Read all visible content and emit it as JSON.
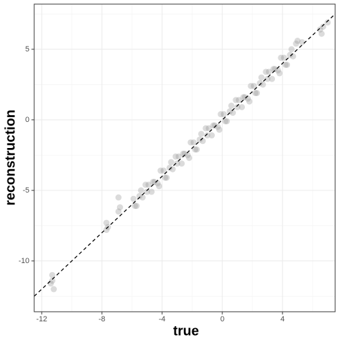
{
  "chart_data": {
    "type": "scatter",
    "x_label": "true",
    "y_label": "reconstruction",
    "x": [
      -5.9,
      -5.7,
      -5.5,
      -5.3,
      -5.1,
      -4.9,
      -4.7,
      -4.5,
      -4.3,
      -4.1,
      -3.9,
      -3.7,
      -3.5,
      -3.3,
      -3.1,
      -2.9,
      -2.7,
      -2.5,
      -2.3,
      -2.1,
      -1.9,
      -1.7,
      -1.5,
      -1.3,
      -1.1,
      -0.9,
      -0.7,
      -0.5,
      -0.3,
      -0.1,
      0.1,
      0.3,
      0.5,
      0.7,
      0.9,
      1.1,
      1.3,
      1.5,
      1.7,
      1.9,
      2.1,
      2.3,
      2.5,
      2.7,
      2.9,
      3.1,
      3.3,
      3.5,
      3.7,
      3.9,
      4.1,
      4.3,
      4.5,
      4.7,
      4.9,
      -5.8,
      -5.4,
      -5.0,
      -4.6,
      -4.2,
      -3.8,
      -3.4,
      -3.0,
      -2.6,
      -2.2,
      -1.8,
      -1.4,
      -1.0,
      -0.6,
      -0.2,
      0.2,
      0.6,
      1.0,
      1.4,
      1.8,
      2.2,
      2.6,
      3.0,
      3.4,
      3.8,
      4.2,
      4.6,
      -11.3,
      -11.4,
      -11.2,
      -11.3,
      -7.7,
      -7.7,
      -7.6,
      -6.9,
      -6.8,
      -6.9,
      5.0,
      5.3,
      6.5,
      6.7,
      6.6,
      7.0
    ],
    "y": [
      -5.6,
      -6.1,
      -5.4,
      -5.5,
      -4.6,
      -4.6,
      -5.1,
      -4.4,
      -4.5,
      -3.6,
      -3.6,
      -4.1,
      -3.4,
      -3.5,
      -2.6,
      -2.6,
      -3.1,
      -2.4,
      -2.5,
      -1.6,
      -1.6,
      -2.1,
      -1.4,
      -1.5,
      -0.6,
      -0.6,
      -1.1,
      -0.4,
      -0.5,
      0.4,
      0.4,
      -0.1,
      0.6,
      0.5,
      1.4,
      1.4,
      0.9,
      1.6,
      1.5,
      2.4,
      2.4,
      1.9,
      2.6,
      2.5,
      3.4,
      3.4,
      2.9,
      3.6,
      3.5,
      4.4,
      4.4,
      3.9,
      4.6,
      4.5,
      5.4,
      -6.1,
      -5.0,
      -5.1,
      -4.4,
      -4.7,
      -4.1,
      -3.0,
      -3.1,
      -2.4,
      -2.7,
      -2.1,
      -1.0,
      -1.1,
      -0.4,
      -0.7,
      -0.1,
      1.0,
      0.9,
      1.6,
      1.3,
      1.9,
      3.0,
      2.9,
      3.6,
      3.3,
      3.9,
      5.0,
      -11.0,
      -11.6,
      -12.0,
      -11.4,
      -7.3,
      -7.8,
      -7.6,
      -5.5,
      -6.2,
      -6.5,
      5.6,
      5.5,
      6.4,
      6.6,
      6.1,
      6.9
    ],
    "color": "#999999",
    "reference_line": {
      "slope": 1,
      "intercept": 0
    },
    "xlim": [
      -12.5,
      7.5
    ],
    "ylim": [
      -13.6,
      8.2
    ],
    "xticks": [
      -12,
      -8,
      -4,
      0,
      4
    ],
    "yticks": [
      -10,
      -5,
      0,
      5
    ],
    "x_minor": [
      -10,
      -6,
      -2,
      2,
      6
    ],
    "y_minor": [
      -12.5,
      -7.5,
      -2.5,
      2.5,
      7.5
    ],
    "grid": true
  }
}
